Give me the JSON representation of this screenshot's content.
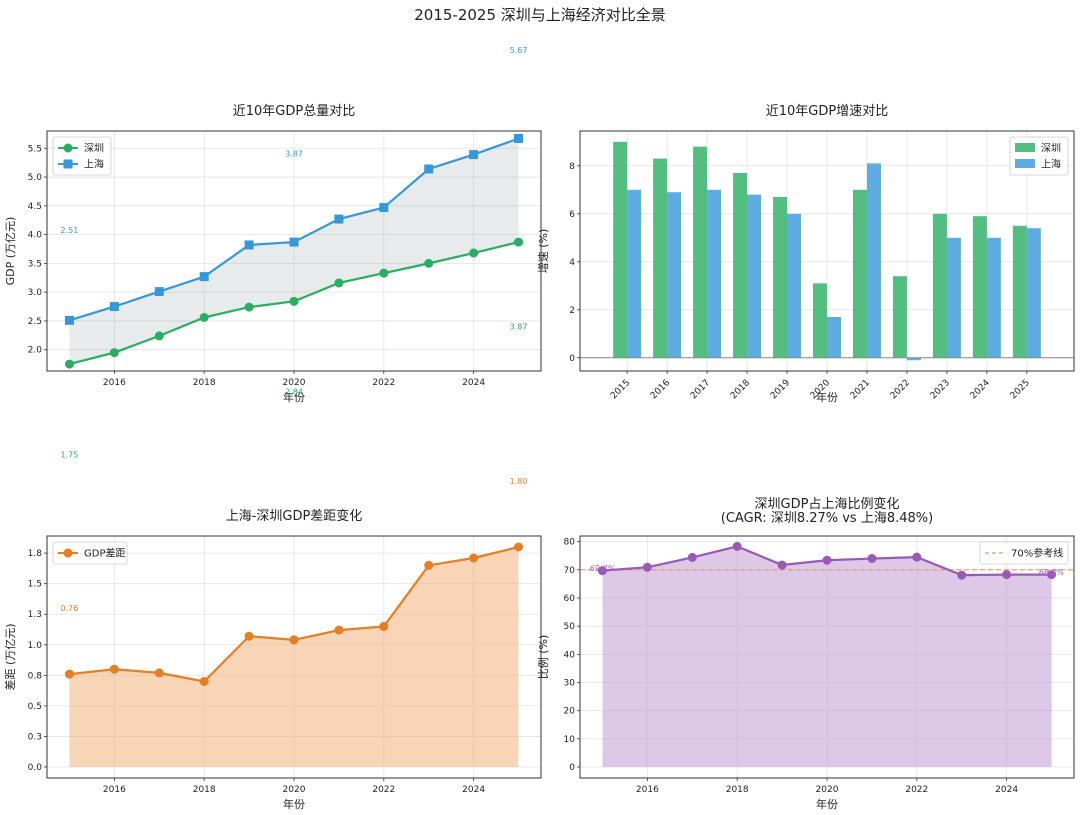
{
  "figure": {
    "title": "2015-2025 深圳与上海经济对比全景"
  },
  "chart_data": [
    {
      "id": "gdp_total",
      "type": "line",
      "title": "近10年GDP总量对比",
      "xlabel": "年份",
      "ylabel": "GDP (万亿元)",
      "x": [
        2015,
        2016,
        2017,
        2018,
        2019,
        2020,
        2021,
        2022,
        2023,
        2024,
        2025
      ],
      "xlim": [
        2014.5,
        2025.5
      ],
      "ylim": [
        1.63,
        5.8
      ],
      "xticks": [
        2016,
        2018,
        2020,
        2022,
        2024
      ],
      "yticks": [
        2.0,
        2.5,
        3.0,
        3.5,
        4.0,
        4.5,
        5.0,
        5.5
      ],
      "grid": true,
      "legend_position": "upper-left",
      "fill_between": true,
      "series": [
        {
          "name": "深圳",
          "color": "#27ae60",
          "marker": "circle",
          "values": [
            1.75,
            1.95,
            2.24,
            2.56,
            2.74,
            2.84,
            3.16,
            3.33,
            3.5,
            3.68,
            3.87
          ]
        },
        {
          "name": "上海",
          "color": "#3498db",
          "marker": "square",
          "values": [
            2.51,
            2.75,
            3.01,
            3.27,
            3.82,
            3.87,
            4.27,
            4.47,
            5.14,
            5.39,
            5.67
          ]
        }
      ],
      "annotations": [
        {
          "text": "2.51",
          "x": 2015,
          "y": 4.08,
          "color": "#3498db"
        },
        {
          "text": "3.87",
          "x": 2020,
          "y": 5.41,
          "color": "#3498db"
        },
        {
          "text": "5.67",
          "x": 2025,
          "y": 7.21,
          "color": "#3498db"
        },
        {
          "text": "1.75",
          "x": 2015,
          "y": 0.18,
          "color": "#27ae60"
        },
        {
          "text": "2.84",
          "x": 2020,
          "y": 1.27,
          "color": "#27ae60"
        },
        {
          "text": "3.87",
          "x": 2025,
          "y": 2.4,
          "color": "#27ae60"
        }
      ]
    },
    {
      "id": "gdp_growth",
      "type": "bar",
      "title": "近10年GDP增速对比",
      "xlabel": "年份",
      "ylabel": "增速 (%)",
      "categories": [
        "2015",
        "2016",
        "2017",
        "2018",
        "2019",
        "2020",
        "2021",
        "2022",
        "2023",
        "2024",
        "2025"
      ],
      "ylim": [
        -0.55,
        9.45
      ],
      "yticks": [
        0,
        2,
        4,
        6,
        8
      ],
      "grid": true,
      "legend_position": "upper-right",
      "series": [
        {
          "name": "深圳",
          "color": "#52be80",
          "values": [
            9.0,
            8.3,
            8.8,
            7.7,
            6.7,
            3.1,
            7.0,
            3.4,
            6.0,
            5.9,
            5.5
          ]
        },
        {
          "name": "上海",
          "color": "#5dade2",
          "values": [
            7.0,
            6.9,
            7.0,
            6.8,
            6.0,
            1.7,
            8.1,
            -0.1,
            5.0,
            5.0,
            5.4
          ]
        }
      ]
    },
    {
      "id": "gdp_gap",
      "type": "area",
      "title": "上海-深圳GDP差距变化",
      "xlabel": "年份",
      "ylabel": "差距 (万亿元)",
      "x": [
        2015,
        2016,
        2017,
        2018,
        2019,
        2020,
        2021,
        2022,
        2023,
        2024,
        2025
      ],
      "xlim": [
        2014.5,
        2025.5
      ],
      "ylim": [
        -0.09,
        1.89
      ],
      "xticks": [
        2016,
        2018,
        2020,
        2022,
        2024
      ],
      "yticks": [
        0.0,
        0.25,
        0.5,
        0.75,
        1.0,
        1.25,
        1.5,
        1.75
      ],
      "grid": true,
      "legend_position": "upper-left",
      "series": [
        {
          "name": "GDP差距",
          "color": "#e67e22",
          "marker": "circle",
          "values": [
            0.76,
            0.8,
            0.77,
            0.7,
            1.07,
            1.04,
            1.12,
            1.15,
            1.65,
            1.71,
            1.8
          ]
        }
      ],
      "annotations": [
        {
          "text": "0.76",
          "x": 2015,
          "y": 1.3,
          "color": "#e67e22"
        },
        {
          "text": "1.80",
          "x": 2025,
          "y": 2.34,
          "color": "#e67e22"
        }
      ]
    },
    {
      "id": "gdp_ratio",
      "type": "line",
      "title": "深圳GDP占上海比例变化",
      "subtitle": "(CAGR: 深圳8.27% vs 上海8.48%)",
      "xlabel": "年份",
      "ylabel": "比例 (%)",
      "x": [
        2015,
        2016,
        2017,
        2018,
        2019,
        2020,
        2021,
        2022,
        2023,
        2024,
        2025
      ],
      "xlim": [
        2014.5,
        2025.5
      ],
      "ylim": [
        -3.9,
        82.0
      ],
      "xticks": [
        2016,
        2018,
        2020,
        2022,
        2024
      ],
      "yticks": [
        0,
        10,
        20,
        30,
        40,
        50,
        60,
        70,
        80
      ],
      "grid": true,
      "legend_position": "upper-right",
      "reference_line": {
        "name": "70%参考线",
        "value": 70,
        "color": "#e59866"
      },
      "series": [
        {
          "name": "比例",
          "color": "#9b59b6",
          "marker": "circle",
          "values": [
            69.7,
            70.9,
            74.4,
            78.3,
            71.7,
            73.4,
            74.0,
            74.5,
            68.1,
            68.3,
            68.3
          ]
        }
      ],
      "annotations": [
        {
          "text": "69.7%",
          "x": 2015,
          "y": 70.7,
          "color": "#a569bd"
        },
        {
          "text": "68.3%",
          "x": 2025,
          "y": 69.3,
          "color": "#a569bd"
        }
      ]
    }
  ]
}
